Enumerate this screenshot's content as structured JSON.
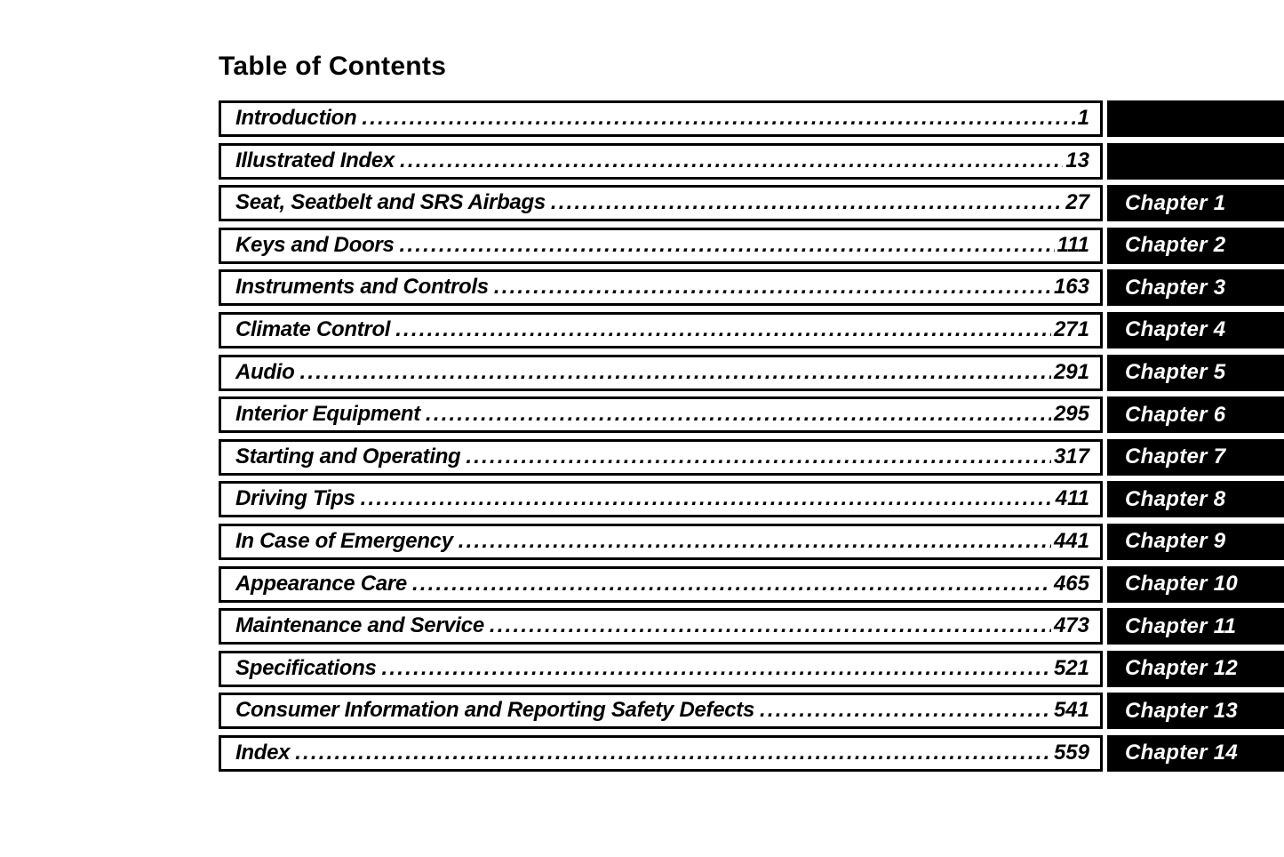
{
  "page": {
    "title": "Table of Contents"
  },
  "toc": {
    "entries": [
      {
        "label": "Introduction",
        "page": "1",
        "chapter": ""
      },
      {
        "label": "Illustrated Index",
        "page": "13",
        "chapter": ""
      },
      {
        "label": "Seat, Seatbelt and SRS Airbags",
        "page": "27",
        "chapter": "Chapter 1"
      },
      {
        "label": "Keys and Doors",
        "page": "111",
        "chapter": "Chapter 2"
      },
      {
        "label": "Instruments and Controls",
        "page": "163",
        "chapter": "Chapter 3"
      },
      {
        "label": "Climate Control",
        "page": "271",
        "chapter": "Chapter 4"
      },
      {
        "label": "Audio",
        "page": "291",
        "chapter": "Chapter 5"
      },
      {
        "label": "Interior Equipment",
        "page": "295",
        "chapter": "Chapter 6"
      },
      {
        "label": "Starting and Operating",
        "page": "317",
        "chapter": "Chapter 7"
      },
      {
        "label": "Driving Tips",
        "page": "411",
        "chapter": "Chapter 8"
      },
      {
        "label": "In Case of Emergency",
        "page": "441",
        "chapter": "Chapter 9"
      },
      {
        "label": "Appearance Care",
        "page": "465",
        "chapter": "Chapter 10"
      },
      {
        "label": "Maintenance and Service",
        "page": "473",
        "chapter": "Chapter 11"
      },
      {
        "label": "Specifications",
        "page": "521",
        "chapter": "Chapter 12"
      },
      {
        "label": "Consumer Information and Reporting Safety Defects",
        "page": "541",
        "chapter": "Chapter 13"
      },
      {
        "label": "Index",
        "page": "559",
        "chapter": "Chapter 14"
      }
    ]
  },
  "colors": {
    "background": "#ffffff",
    "text": "#000000",
    "border": "#000000",
    "tab_background": "#000000",
    "tab_text": "#ffffff"
  }
}
